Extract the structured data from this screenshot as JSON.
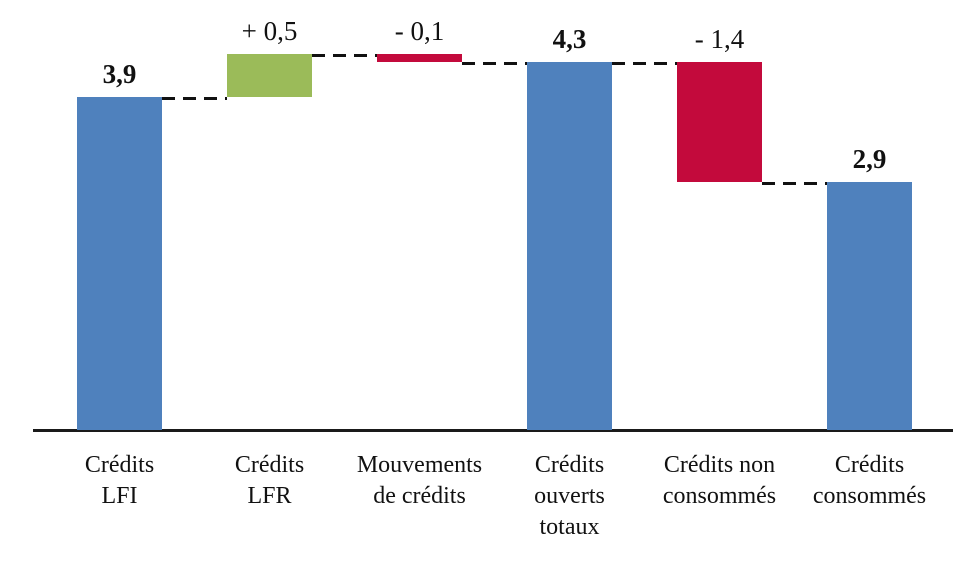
{
  "chart_data": {
    "type": "bar",
    "subtype": "waterfall",
    "title": "",
    "xlabel": "",
    "ylabel": "",
    "ylim": [
      0,
      4.4
    ],
    "grid": false,
    "legend": false,
    "connector_style": "dashed",
    "categories": [
      "Crédits LFI",
      "Crédits LFR",
      "Mouvements de crédits",
      "Crédits ouverts totaux",
      "Crédits non consommés",
      "Crédits consommés"
    ],
    "bars": [
      {
        "category": "Crédits LFI",
        "label_lines": [
          "Crédits",
          "LFI"
        ],
        "value": 3.9,
        "display": "3,9",
        "kind": "total",
        "bold_label": true
      },
      {
        "category": "Crédits LFR",
        "label_lines": [
          "Crédits",
          "LFR"
        ],
        "value": 0.5,
        "display": "+ 0,5",
        "kind": "increase",
        "bold_label": false
      },
      {
        "category": "Mouvements de crédits",
        "label_lines": [
          "Mouvements",
          "de crédits"
        ],
        "value": -0.1,
        "display": "- 0,1",
        "kind": "decrease",
        "bold_label": false
      },
      {
        "category": "Crédits ouverts totaux",
        "label_lines": [
          "Crédits",
          "ouverts",
          "totaux"
        ],
        "value": 4.3,
        "display": "4,3",
        "kind": "total",
        "bold_label": true
      },
      {
        "category": "Crédits non consommés",
        "label_lines": [
          "Crédits non",
          "consommés"
        ],
        "value": -1.4,
        "display": "- 1,4",
        "kind": "decrease",
        "bold_label": false
      },
      {
        "category": "Crédits consommés",
        "label_lines": [
          "Crédits",
          "consommés"
        ],
        "value": 2.9,
        "display": "2,9",
        "kind": "total",
        "bold_label": true
      }
    ],
    "colors": {
      "total": "#4F81BD",
      "increase": "#9BBB59",
      "decrease": "#C30A3C",
      "axis": "#1a1a1a",
      "connector": "#111111",
      "text": "#111111"
    }
  }
}
